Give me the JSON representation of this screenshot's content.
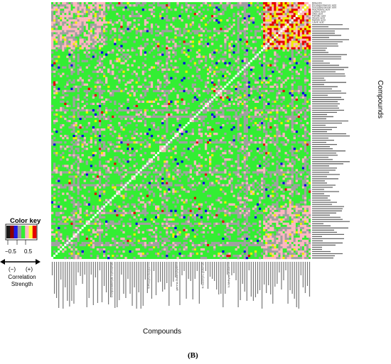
{
  "chart_data": {
    "type": "heatmap",
    "title": "",
    "xlabel": "Compounds",
    "ylabel": "Compounds",
    "n_compounds": 120,
    "color_key": {
      "title": "Color key",
      "ticks": [
        "−0.5",
        "0.5"
      ],
      "negative_label": "(−)",
      "positive_label": "(+)",
      "strength_label": "Correlation\nStrength",
      "colors": [
        "#1a1a1a",
        "#8b0000",
        "#1a1ae6",
        "#9e9e9e",
        "#33ee33",
        "#ffb6c8",
        "#ffff33",
        "#e60000"
      ]
    },
    "colors": {
      "strong_negative": "#000000",
      "negative": "#0000e6",
      "weak": "#a0a0a0",
      "neutral": "#33ee33",
      "weak_positive": "#ffb6c1",
      "positive": "#f0f000",
      "strong_positive": "#e60000",
      "diagonal": "#ffffff"
    },
    "y_labels_top": [
      "Biliverdin",
      "Eicosapentaenoic acid",
      "Docosahexaenoic acid",
      "Arachidonic acid",
      "Linoleic acid",
      "Oleic acid",
      "Palmitic acid",
      "Stearic acid",
      "Myristic acid",
      "Lauric acid"
    ],
    "x_labels_visible": [
      "D-Glyceraldehyde 3-phosphate",
      "5-Phosphoribosylamine",
      "gamma-Glutamylcysteine",
      "N-Succinyl-L-glutamate",
      "N-Methylethanolamine"
    ],
    "panel_label": "(B)"
  }
}
